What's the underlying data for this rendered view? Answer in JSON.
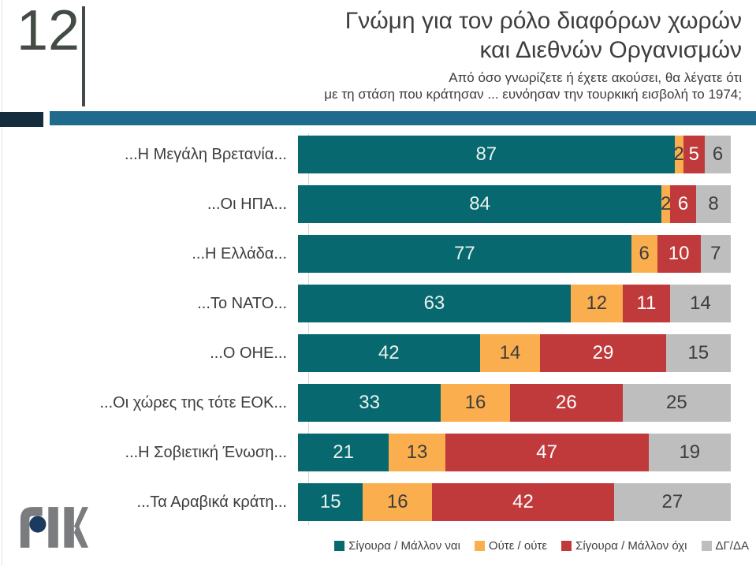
{
  "slide_number": "12",
  "title": {
    "line1": "Γνώμη για τον ρόλο διαφόρων χωρών",
    "line2": "και Διεθνών Οργανισμών"
  },
  "subtitle": {
    "line1": "Από όσο γνωρίζετε ή έχετε ακούσει, θα λέγατε ότι",
    "line2": "με τη στάση που κράτησαν ... ευνόησαν την τουρκική εισβολή το 1974;"
  },
  "logo": {
    "name": "ΡΙΚ"
  },
  "colors": {
    "header_bar": "#1f6b8e",
    "header_block": "#142c3c",
    "accent_dark": "#434c44",
    "axis_line": "#d9d9d9"
  },
  "chart_data": {
    "type": "bar",
    "orientation": "horizontal",
    "stacked": true,
    "unit": "percent",
    "xlim": [
      0,
      100
    ],
    "grid": false,
    "legend_position": "bottom",
    "categories": [
      "...Η Μεγάλη Βρετανία...",
      "...Οι ΗΠΑ...",
      "...Η Ελλάδα...",
      "...Το ΝΑΤΟ...",
      "...Ο ΟΗΕ...",
      "...Οι χώρες της τότε ΕΟΚ...",
      "...Η Σοβιετική Ένωση...",
      "...Τα Αραβικά κράτη..."
    ],
    "series": [
      {
        "name": "Σίγουρα / Μάλλον ναι",
        "color": "#07686f",
        "label_color": "#eaf2ec",
        "values": [
          87,
          84,
          77,
          63,
          42,
          33,
          21,
          15
        ]
      },
      {
        "name": "Ούτε / ούτε",
        "color": "#faae4e",
        "label_color": "#3d3d3d",
        "values": [
          2,
          2,
          6,
          12,
          14,
          16,
          13,
          16
        ]
      },
      {
        "name": "Σίγουρα / Μάλλον όχι",
        "color": "#c03a3c",
        "label_color": "#ffffff",
        "values": [
          5,
          6,
          10,
          11,
          29,
          26,
          47,
          42
        ]
      },
      {
        "name": "ΔΓ/ΔΑ",
        "color": "#bebebe",
        "label_color": "#3d3d3d",
        "values": [
          6,
          8,
          7,
          14,
          15,
          25,
          19,
          27
        ]
      }
    ]
  }
}
